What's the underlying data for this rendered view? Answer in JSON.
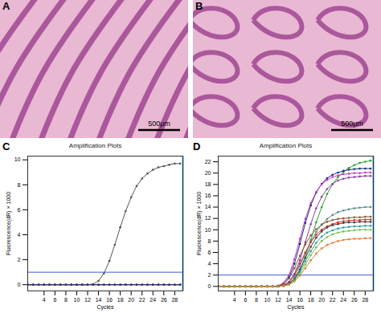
{
  "images": [
    {
      "label": "A",
      "scale_bar": "500μm"
    },
    {
      "label": "B",
      "scale_bar": "500μm"
    }
  ],
  "chart_data": [
    {
      "type": "line",
      "panel": "C",
      "title": "Amplification Plots",
      "x_label": "Cycles",
      "y_label": "Fluorescence(dR) × 1000",
      "x": [
        1,
        2,
        3,
        4,
        5,
        6,
        7,
        8,
        9,
        10,
        11,
        12,
        13,
        14,
        15,
        16,
        17,
        18,
        19,
        20,
        21,
        22,
        23,
        24,
        25,
        26,
        27,
        28,
        29
      ],
      "xlim": [
        1,
        29.5
      ],
      "xticks": [
        4,
        6,
        8,
        10,
        12,
        14,
        16,
        18,
        20,
        22,
        24,
        26,
        28
      ],
      "ylim": [
        -0.5,
        10.3
      ],
      "yticks": [
        0,
        2,
        4,
        6,
        8,
        10
      ],
      "threshold": 1,
      "marker": "circle",
      "grid": false,
      "series": [
        {
          "color": "#555555",
          "values": [
            0,
            0,
            0,
            0,
            0,
            0,
            0,
            0,
            0,
            0,
            0,
            0,
            0.05,
            0.3,
            0.9,
            1.9,
            3.2,
            4.6,
            5.9,
            7.0,
            7.9,
            8.5,
            8.9,
            9.2,
            9.4,
            9.5,
            9.6,
            9.7,
            9.7
          ]
        },
        {
          "color": "#2ca02c",
          "values": [
            0,
            0,
            0,
            0,
            0,
            0,
            0,
            0,
            0,
            0,
            0,
            0,
            0,
            0,
            0,
            0,
            0,
            0,
            0,
            0,
            0,
            0,
            0,
            0,
            0,
            0,
            0,
            0,
            0
          ]
        },
        {
          "color": "#d03030",
          "values": [
            0,
            0,
            0,
            0,
            0,
            0,
            0,
            0,
            0,
            0,
            0,
            0,
            0,
            0,
            0,
            0,
            0,
            0,
            0,
            0,
            0,
            0,
            0,
            0,
            0,
            0,
            0,
            0,
            0
          ]
        },
        {
          "color": "#1f2a8a",
          "values": [
            0,
            0,
            0,
            0,
            0,
            0,
            0,
            0,
            0,
            0,
            0,
            0,
            0,
            0,
            0,
            0,
            0,
            0,
            0,
            0,
            0,
            0,
            0,
            0,
            0,
            0,
            0,
            0,
            0
          ]
        }
      ]
    },
    {
      "type": "line",
      "panel": "D",
      "title": "Amplification Plots",
      "x_label": "Cycles",
      "y_label": "Fluorescence(dR) × 1000",
      "x": [
        1,
        2,
        3,
        4,
        5,
        6,
        7,
        8,
        9,
        10,
        11,
        12,
        13,
        14,
        15,
        16,
        17,
        18,
        19,
        20,
        21,
        22,
        23,
        24,
        25,
        26,
        27,
        28,
        29
      ],
      "xlim": [
        1,
        29.5
      ],
      "xticks": [
        4,
        6,
        8,
        10,
        12,
        14,
        16,
        18,
        20,
        22,
        24,
        26,
        28
      ],
      "ylim": [
        -0.8,
        23
      ],
      "yticks": [
        0,
        2,
        4,
        6,
        8,
        10,
        12,
        14,
        16,
        18,
        20,
        22
      ],
      "threshold": 2,
      "marker": "circle",
      "grid": false,
      "series": [
        {
          "color": "#2ca02c",
          "values": [
            0,
            0,
            0,
            0,
            0,
            0,
            0,
            0,
            0,
            0,
            0,
            0,
            0.1,
            0.4,
            1.2,
            2.8,
            5.2,
            8.2,
            11.3,
            14.0,
            16.3,
            18.0,
            19.3,
            20.2,
            20.9,
            21.4,
            21.8,
            22.0,
            22.2
          ]
        },
        {
          "color": "#1f2a8a",
          "values": [
            0,
            0,
            0,
            0,
            0,
            0,
            0,
            0,
            0,
            0,
            0,
            0.1,
            0.5,
            1.6,
            4.0,
            7.5,
            11.2,
            14.3,
            16.6,
            18.1,
            19.1,
            19.7,
            20.1,
            20.4,
            20.6,
            20.7,
            20.8,
            20.8,
            20.8
          ]
        },
        {
          "color": "#c040c0",
          "values": [
            0,
            0,
            0,
            0,
            0,
            0,
            0,
            0,
            0,
            0,
            0,
            0.1,
            0.6,
            2.0,
            4.8,
            8.4,
            11.9,
            14.7,
            16.7,
            18.0,
            18.8,
            19.3,
            19.6,
            19.8,
            19.9,
            20.0,
            20.0,
            20.1,
            20.1
          ]
        },
        {
          "color": "#8a3fa8",
          "values": [
            0,
            0,
            0,
            0,
            0,
            0,
            0,
            0,
            0,
            0,
            0,
            0,
            0.2,
            0.8,
            2.2,
            4.6,
            7.8,
            11.0,
            13.8,
            15.8,
            17.2,
            18.1,
            18.7,
            19.0,
            19.2,
            19.3,
            19.4,
            19.5,
            19.5
          ]
        },
        {
          "color": "#5c8a8a",
          "values": [
            0,
            0,
            0,
            0,
            0,
            0,
            0,
            0,
            0,
            0,
            0,
            0,
            0.2,
            0.7,
            1.8,
            3.6,
            5.8,
            7.9,
            9.6,
            10.9,
            11.9,
            12.6,
            13.1,
            13.4,
            13.6,
            13.8,
            13.9,
            14.0,
            14.0
          ]
        },
        {
          "color": "#8b5a2b",
          "values": [
            0,
            0,
            0,
            0,
            0,
            0,
            0,
            0,
            0,
            0,
            0,
            0.1,
            0.4,
            1.4,
            3.2,
            5.4,
            7.4,
            9.0,
            10.1,
            10.9,
            11.4,
            11.7,
            11.9,
            12.0,
            12.1,
            12.2,
            12.2,
            12.3,
            12.3
          ]
        },
        {
          "color": "#d03030",
          "values": [
            0,
            0,
            0,
            0,
            0,
            0,
            0,
            0,
            0,
            0,
            0,
            0,
            0.2,
            0.8,
            2.1,
            4.0,
            6.0,
            7.8,
            9.1,
            10.0,
            10.6,
            11.0,
            11.3,
            11.5,
            11.6,
            11.7,
            11.7,
            11.8,
            11.8
          ]
        },
        {
          "color": "#404040",
          "values": [
            0,
            0,
            0,
            0,
            0,
            0,
            0,
            0,
            0,
            0,
            0,
            0,
            0.1,
            0.5,
            1.4,
            3.0,
            5.0,
            7.0,
            8.6,
            9.7,
            10.4,
            10.8,
            11.0,
            11.2,
            11.3,
            11.3,
            11.4,
            11.4,
            11.4
          ]
        },
        {
          "color": "#2a9d9d",
          "values": [
            0,
            0,
            0,
            0,
            0,
            0,
            0,
            0,
            0,
            0,
            0,
            0,
            0.1,
            0.4,
            1.2,
            2.6,
            4.4,
            6.2,
            7.7,
            8.8,
            9.5,
            9.9,
            10.2,
            10.4,
            10.5,
            10.6,
            10.6,
            10.7,
            10.7
          ]
        },
        {
          "color": "#7cc04a",
          "values": [
            0,
            0,
            0,
            0,
            0,
            0,
            0,
            0,
            0,
            0,
            0,
            0,
            0.1,
            0.3,
            1.0,
            2.2,
            3.8,
            5.5,
            6.9,
            8.0,
            8.7,
            9.2,
            9.5,
            9.7,
            9.8,
            9.9,
            10.0,
            10.0,
            10.0
          ]
        },
        {
          "color": "#e08040",
          "values": [
            0,
            0,
            0,
            0,
            0,
            0,
            0,
            0,
            0,
            0,
            0,
            0,
            0.1,
            0.3,
            0.9,
            1.9,
            3.2,
            4.6,
            5.8,
            6.7,
            7.3,
            7.7,
            8.0,
            8.2,
            8.3,
            8.4,
            8.4,
            8.5,
            8.5
          ]
        }
      ]
    }
  ]
}
